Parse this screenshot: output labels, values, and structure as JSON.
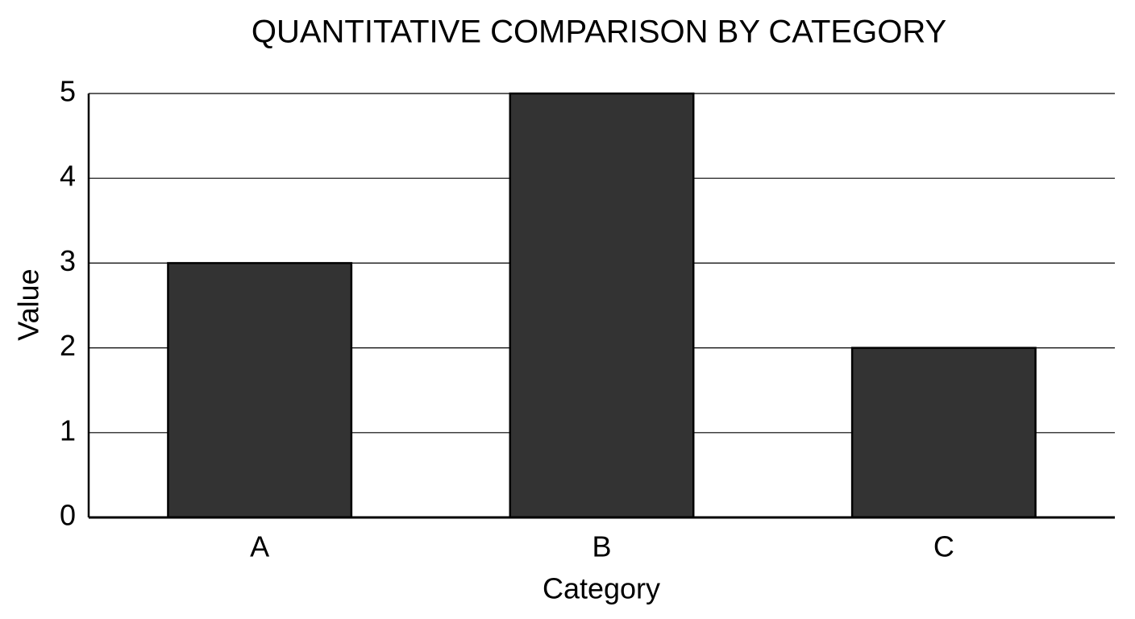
{
  "chart_data": {
    "type": "bar",
    "title": "QUANTITATIVE COMPARISON BY CATEGORY",
    "x_label": "Category",
    "y_label": "Value",
    "categories": [
      "A",
      "B",
      "C"
    ],
    "values": [
      3,
      5,
      2
    ],
    "color": "#333333",
    "ylim": [
      0,
      5
    ],
    "yticks": [
      0,
      1,
      2,
      3,
      4,
      5
    ],
    "grid": true
  }
}
